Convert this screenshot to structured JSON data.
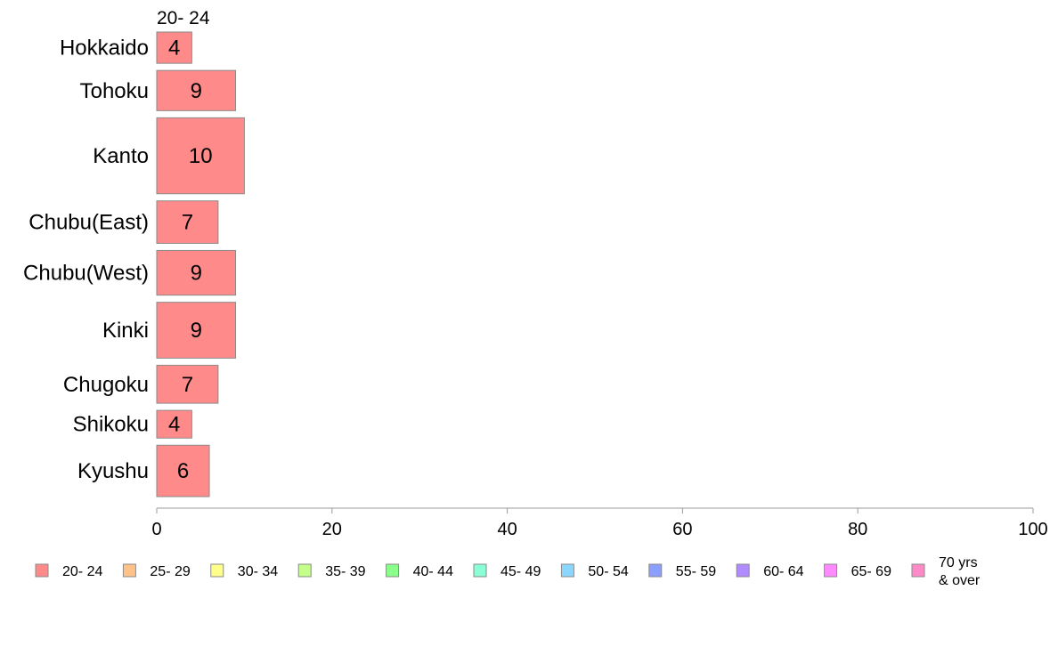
{
  "chart_data": {
    "type": "bar",
    "orientation": "horizontal",
    "stacked": true,
    "series_header": "20- 24",
    "categories": [
      "Hokkaido",
      "Tohoku",
      "Kanto",
      "Chubu(East)",
      "Chubu(West)",
      "Kinki",
      "Chugoku",
      "Shikoku",
      "Kyushu"
    ],
    "category_weights": [
      0.7,
      0.9,
      1.7,
      0.95,
      1.0,
      1.25,
      0.85,
      0.62,
      1.15
    ],
    "series": [
      {
        "name": "20- 24",
        "color": "#ff8a8a",
        "values": [
          4,
          9,
          10,
          7,
          9,
          9,
          7,
          4,
          6
        ],
        "value_labels": [
          "4",
          "9",
          "10",
          "7",
          "9",
          "9",
          "7",
          "4",
          "6"
        ]
      }
    ],
    "xlim": [
      0,
      100
    ],
    "xticks": [
      0,
      20,
      40,
      60,
      80,
      100
    ],
    "xtick_labels": [
      "0",
      "20",
      "40",
      "60",
      "80",
      "100"
    ],
    "xlabel": "",
    "ylabel": "",
    "grid": false,
    "legend": {
      "placement": "bottom",
      "entries": [
        {
          "label": "20- 24",
          "color": "#ff8a8a"
        },
        {
          "label": "25- 29",
          "color": "#ffc38a"
        },
        {
          "label": "30- 34",
          "color": "#ffff8a"
        },
        {
          "label": "35- 39",
          "color": "#c3ff8a"
        },
        {
          "label": "40- 44",
          "color": "#8aff8a"
        },
        {
          "label": "45- 49",
          "color": "#8affd6"
        },
        {
          "label": "50- 54",
          "color": "#8ad6ff"
        },
        {
          "label": "55- 59",
          "color": "#8a9fff"
        },
        {
          "label": "60- 64",
          "color": "#b08aff"
        },
        {
          "label": "65- 69",
          "color": "#ff8aff"
        },
        {
          "label": "70 yrs\n& over",
          "color": "#ff8ac8"
        }
      ]
    }
  }
}
